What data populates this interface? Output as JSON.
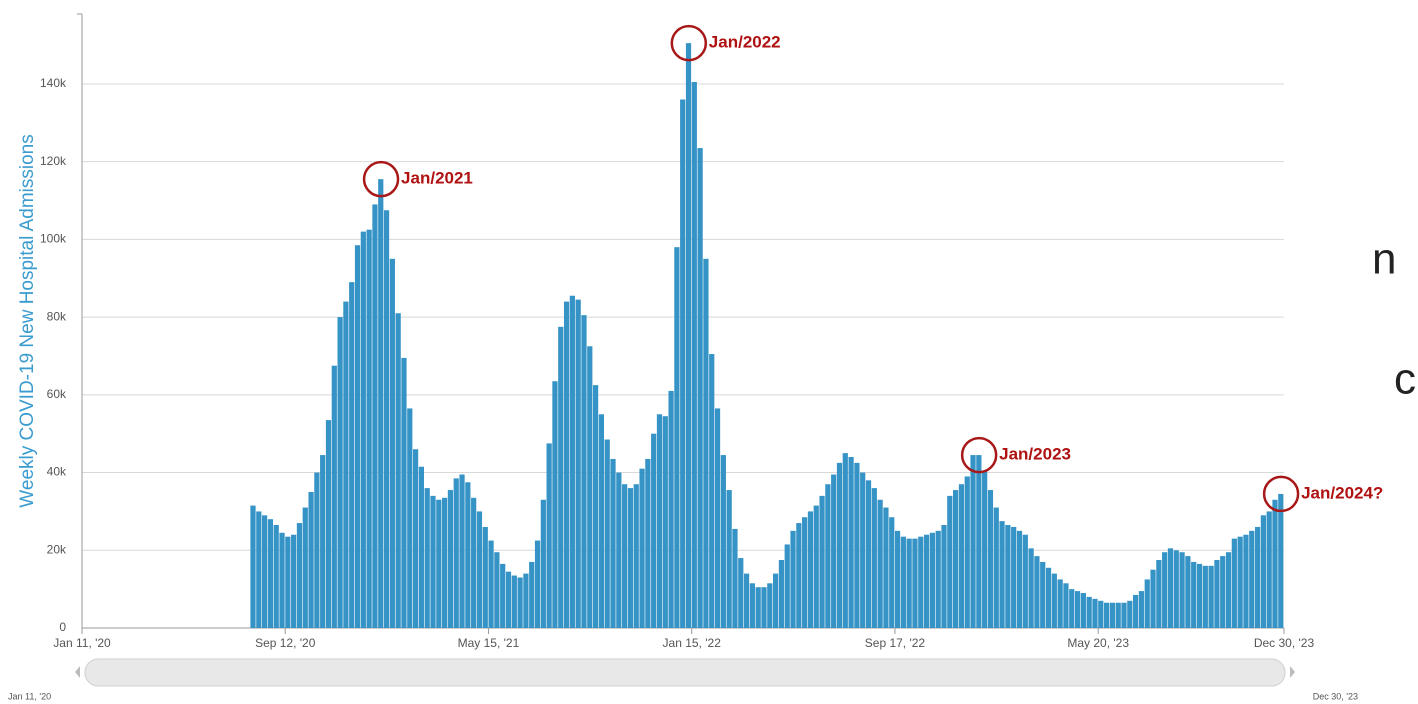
{
  "chart_data": {
    "type": "bar",
    "y_label": "Weekly COVID-19 New Hospital Admissions",
    "color": "#3593c6",
    "grid": true,
    "ylim": [
      0,
      158000
    ],
    "yticks": [
      0,
      {
        "value": 20000,
        "label": "20k"
      },
      {
        "value": 40000,
        "label": "40k"
      },
      {
        "value": 60000,
        "label": "60k"
      },
      {
        "value": 80000,
        "label": "80k"
      },
      {
        "value": 100000,
        "label": "100k"
      },
      {
        "value": 120000,
        "label": "120k"
      },
      {
        "value": 140000,
        "label": "140k"
      }
    ],
    "categories": [
      "Jan 11, '20",
      null,
      null,
      null,
      null,
      null,
      null,
      null,
      null,
      null,
      null,
      null,
      null,
      null,
      null,
      null,
      null,
      null,
      null,
      null,
      null,
      null,
      null,
      null,
      null,
      null,
      null,
      null,
      null,
      null,
      null,
      null,
      null,
      null,
      null,
      "Sep 12, '20",
      null,
      null,
      null,
      null,
      null,
      null,
      null,
      null,
      null,
      null,
      null,
      null,
      null,
      null,
      null,
      null,
      null,
      null,
      null,
      null,
      null,
      null,
      null,
      null,
      null,
      null,
      null,
      null,
      null,
      null,
      null,
      null,
      null,
      null,
      "May 15, '21",
      null,
      null,
      null,
      null,
      null,
      null,
      null,
      null,
      null,
      null,
      null,
      null,
      null,
      null,
      null,
      null,
      null,
      null,
      null,
      null,
      null,
      null,
      null,
      null,
      null,
      null,
      null,
      null,
      null,
      null,
      null,
      null,
      null,
      null,
      "Jan 15, '22",
      null,
      null,
      null,
      null,
      null,
      null,
      null,
      null,
      null,
      null,
      null,
      null,
      null,
      null,
      null,
      null,
      null,
      null,
      null,
      null,
      null,
      null,
      null,
      null,
      null,
      null,
      null,
      null,
      null,
      null,
      null,
      null,
      null,
      null,
      "Sep 17, '22",
      null,
      null,
      null,
      null,
      null,
      null,
      null,
      null,
      null,
      null,
      null,
      null,
      null,
      null,
      null,
      null,
      null,
      null,
      null,
      null,
      null,
      null,
      null,
      null,
      null,
      null,
      null,
      null,
      null,
      null,
      null,
      null,
      null,
      null,
      "May 20, '23",
      null,
      null,
      null,
      null,
      null,
      null,
      null,
      null,
      null,
      null,
      null,
      null,
      null,
      null,
      null,
      null,
      null,
      null,
      null,
      null,
      null,
      null,
      null,
      null,
      null,
      null,
      null,
      null,
      null,
      null,
      null,
      "Dec 30, '23"
    ],
    "values": [
      null,
      null,
      null,
      null,
      null,
      null,
      null,
      null,
      null,
      null,
      null,
      null,
      null,
      null,
      null,
      null,
      null,
      null,
      null,
      null,
      null,
      null,
      null,
      null,
      null,
      null,
      null,
      null,
      null,
      null,
      31500,
      30000,
      29000,
      28000,
      26500,
      24500,
      23500,
      24000,
      27000,
      31000,
      35000,
      40000,
      44500,
      53500,
      67500,
      80000,
      84000,
      89000,
      98500,
      102000,
      102500,
      109000,
      115500,
      107500,
      95000,
      81000,
      69500,
      56500,
      46000,
      41500,
      36000,
      34000,
      33000,
      33500,
      35500,
      38500,
      39500,
      37500,
      33500,
      30000,
      26000,
      22500,
      19500,
      16500,
      14500,
      13500,
      13000,
      14000,
      17000,
      22500,
      33000,
      47500,
      63500,
      77500,
      84000,
      85500,
      84500,
      80500,
      72500,
      62500,
      55000,
      48500,
      43500,
      40000,
      37000,
      36000,
      37000,
      41000,
      43500,
      50000,
      55000,
      54500,
      61000,
      98000,
      136000,
      150500,
      140500,
      123500,
      95000,
      70500,
      56500,
      44500,
      35500,
      25500,
      18000,
      14000,
      11500,
      10500,
      10500,
      11500,
      14000,
      17500,
      21500,
      25000,
      27000,
      28500,
      30000,
      31500,
      34000,
      37000,
      39500,
      42500,
      45000,
      44000,
      42500,
      40000,
      38000,
      36000,
      33000,
      31000,
      28500,
      25000,
      23500,
      23000,
      23000,
      23500,
      24000,
      24500,
      25000,
      26500,
      34000,
      35500,
      37000,
      39000,
      44500,
      44500,
      40500,
      35500,
      31000,
      27500,
      26500,
      26000,
      25000,
      24000,
      20500,
      18500,
      17000,
      15500,
      14000,
      12500,
      11500,
      10000,
      9500,
      9000,
      8000,
      7500,
      7000,
      6500,
      6500,
      6500,
      6500,
      7000,
      8500,
      9500,
      12500,
      15000,
      17500,
      19500,
      20500,
      20000,
      19500,
      18500,
      17000,
      16500,
      16000,
      16000,
      17500,
      18500,
      19500,
      23000,
      23500,
      24000,
      25000,
      26000,
      29000,
      30000,
      33000,
      34500
    ],
    "annotations": [
      "Jan/2021",
      "Jan/2022",
      "Jan/2023",
      "Jan/2024?"
    ],
    "side_text": [
      "n",
      "c"
    ]
  }
}
